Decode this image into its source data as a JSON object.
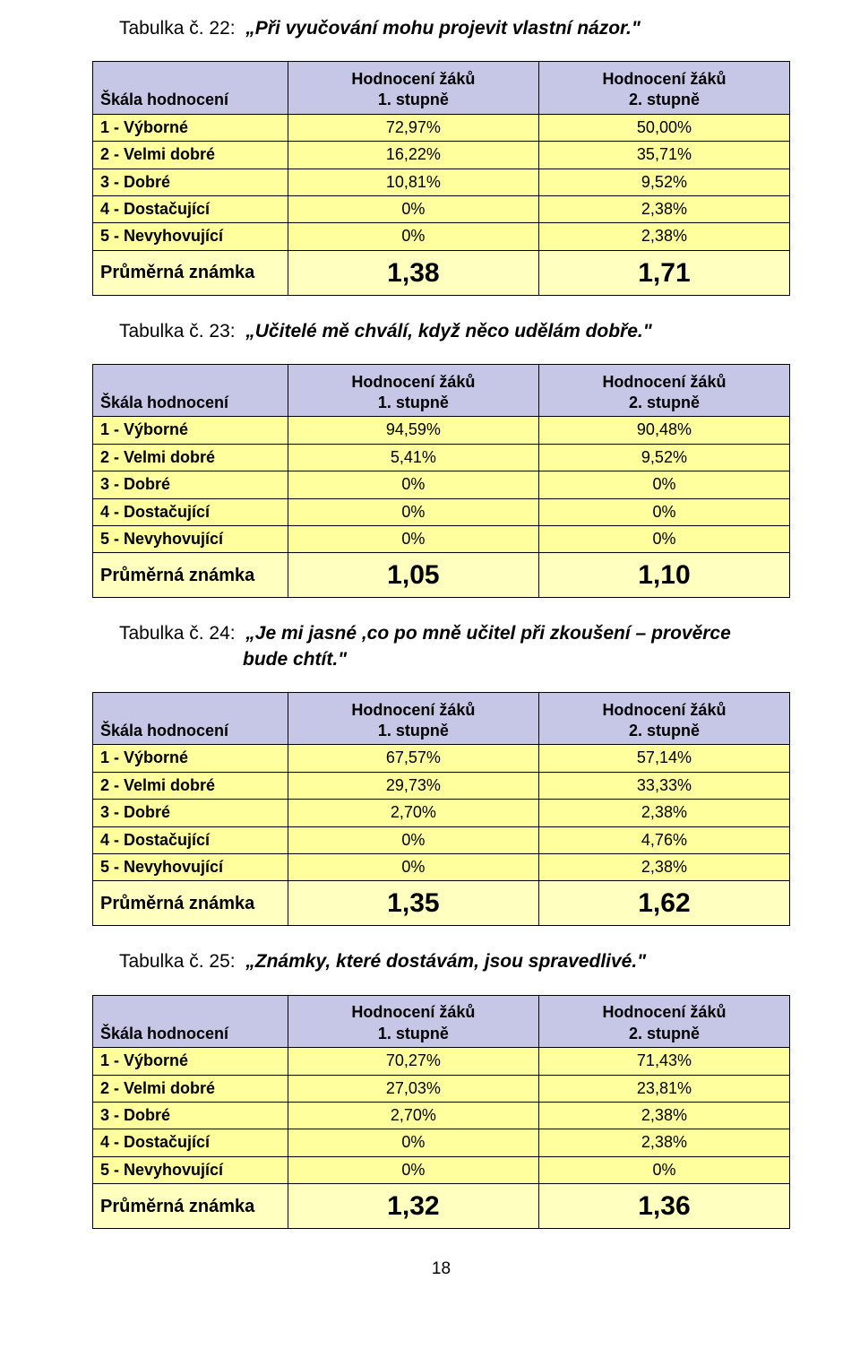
{
  "headers": {
    "scale": "Škála hodnocení",
    "col1_top": "Hodnocení žáků",
    "col1_bot": "1. stupně",
    "col2_top": "Hodnocení žáků",
    "col2_bot": "2. stupně"
  },
  "row_labels": {
    "r1": "1 - Výborné",
    "r2": "2 - Velmi dobré",
    "r3": "3 - Dobré",
    "r4": "4 - Dostačující",
    "r5": "5 - Nevyhovující",
    "avg": "Průměrná známka"
  },
  "colors": {
    "header_bg": "#c6c7e7",
    "row_bg": "#ffff9d",
    "avg_bg": "#ffffc0"
  },
  "captions": {
    "t22_num": "Tabulka č.  22:",
    "t22_text": "„Při vyučování mohu projevit vlastní názor.\"",
    "t23_num": "Tabulka č. 23:",
    "t23_text": "„Učitelé mě chválí, když něco udělám dobře.\"",
    "t24_num": "Tabulka č. 24:",
    "t24_text": "„Je mi jasné ,co po mně učitel při zkoušení – prověrce",
    "t24_text2": "bude chtít.\"",
    "t25_num": "Tabulka č. 25:",
    "t25_text": "„Známky, které dostávám, jsou spravedlivé.\""
  },
  "tables": {
    "t22": {
      "r1": {
        "c1": "72,97%",
        "c2": "50,00%"
      },
      "r2": {
        "c1": "16,22%",
        "c2": "35,71%"
      },
      "r3": {
        "c1": "10,81%",
        "c2": "9,52%"
      },
      "r4": {
        "c1": "0%",
        "c2": "2,38%"
      },
      "r5": {
        "c1": "0%",
        "c2": "2,38%"
      },
      "avg": {
        "c1": "1,38",
        "c2": "1,71"
      }
    },
    "t23": {
      "r1": {
        "c1": "94,59%",
        "c2": "90,48%"
      },
      "r2": {
        "c1": "5,41%",
        "c2": "9,52%"
      },
      "r3": {
        "c1": "0%",
        "c2": "0%"
      },
      "r4": {
        "c1": "0%",
        "c2": "0%"
      },
      "r5": {
        "c1": "0%",
        "c2": "0%"
      },
      "avg": {
        "c1": "1,05",
        "c2": "1,10"
      }
    },
    "t24": {
      "r1": {
        "c1": "67,57%",
        "c2": "57,14%"
      },
      "r2": {
        "c1": "29,73%",
        "c2": "33,33%"
      },
      "r3": {
        "c1": "2,70%",
        "c2": "2,38%"
      },
      "r4": {
        "c1": "0%",
        "c2": "4,76%"
      },
      "r5": {
        "c1": "0%",
        "c2": "2,38%"
      },
      "avg": {
        "c1": "1,35",
        "c2": "1,62"
      }
    },
    "t25": {
      "r1": {
        "c1": "70,27%",
        "c2": "71,43%"
      },
      "r2": {
        "c1": "27,03%",
        "c2": "23,81%"
      },
      "r3": {
        "c1": "2,70%",
        "c2": "2,38%"
      },
      "r4": {
        "c1": "0%",
        "c2": "2,38%"
      },
      "r5": {
        "c1": "0%",
        "c2": "0%"
      },
      "avg": {
        "c1": "1,32",
        "c2": "1,36"
      }
    }
  },
  "page_number": "18"
}
